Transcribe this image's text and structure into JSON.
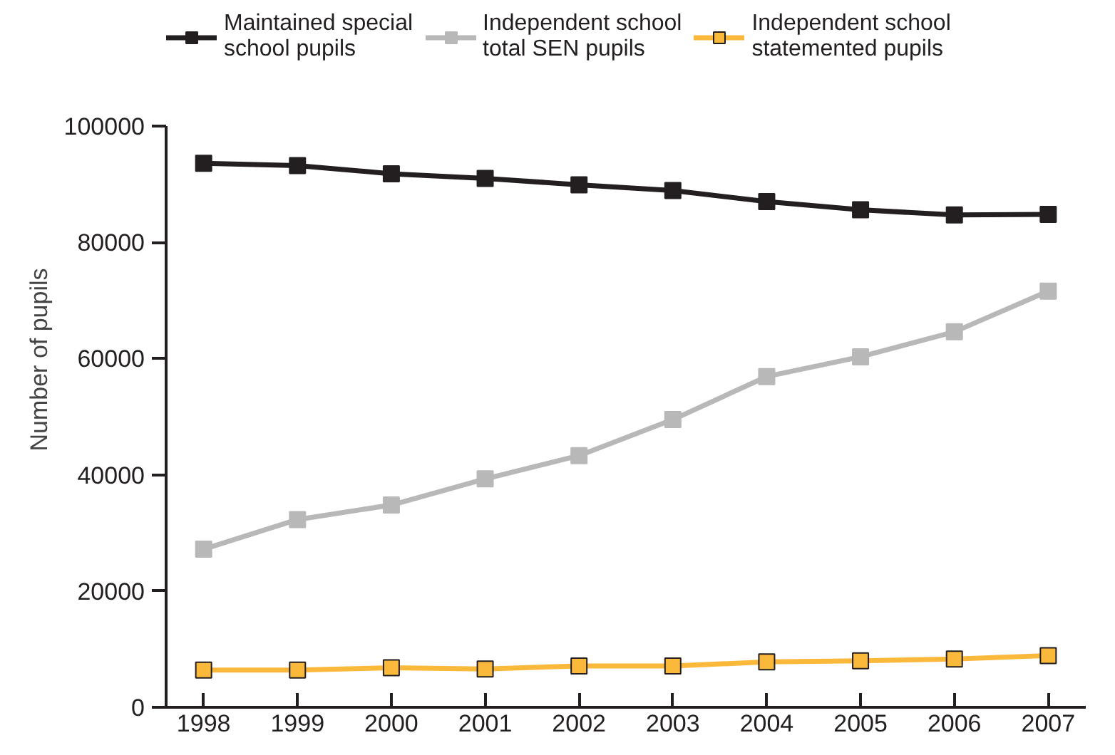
{
  "chart_data": {
    "type": "line",
    "ylabel": "Number of pupils",
    "x": [
      1998,
      1999,
      2000,
      2001,
      2002,
      2003,
      2004,
      2005,
      2006,
      2007
    ],
    "xlim": [
      1997.6,
      2007.4
    ],
    "xticks": [
      1998,
      1999,
      2000,
      2001,
      2002,
      2003,
      2004,
      2005,
      2006,
      2007
    ],
    "ylim": [
      0,
      100000
    ],
    "yticks": [
      0,
      20000,
      40000,
      60000,
      80000,
      100000
    ],
    "grid": false,
    "legend": "top",
    "marker": "square",
    "line_style": "solid",
    "series": [
      {
        "name": "Maintained special school pupils",
        "color": "#231f20",
        "values": [
          93600,
          93200,
          91800,
          91000,
          89900,
          88900,
          87000,
          85600,
          84700,
          84800
        ]
      },
      {
        "name": "Independent school total SEN pupils",
        "color": "#b8b8b8",
        "values": [
          27200,
          32300,
          34800,
          39300,
          43300,
          49500,
          56900,
          60300,
          64600,
          71600
        ]
      },
      {
        "name": "Independent school statemented pupils",
        "color": "#fbb93c",
        "values": [
          6400,
          6400,
          6800,
          6600,
          7100,
          7100,
          7800,
          8000,
          8300,
          8900
        ]
      }
    ]
  }
}
